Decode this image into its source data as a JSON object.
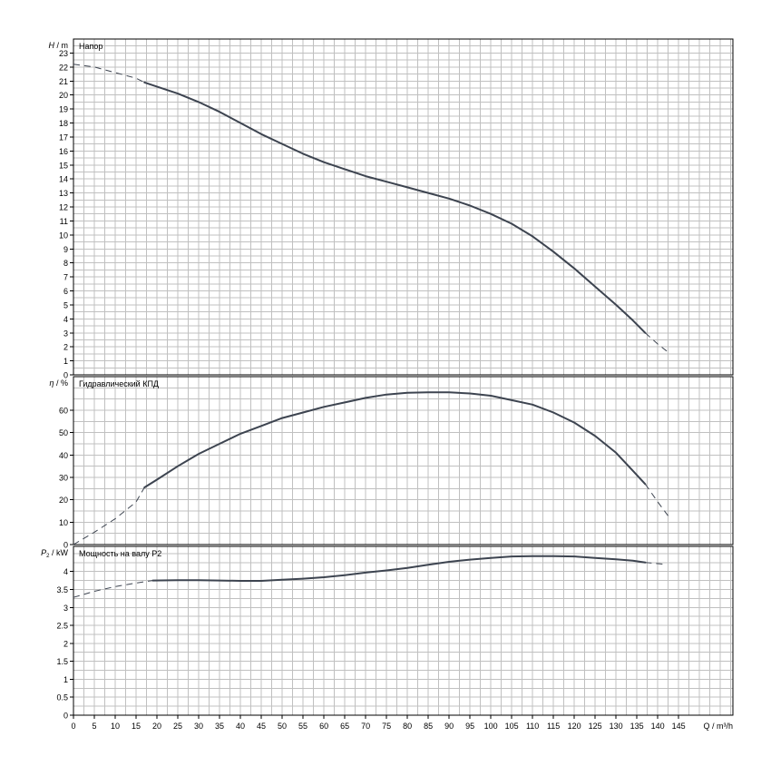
{
  "chart_data": [
    {
      "type": "line",
      "panel": "head",
      "title": "Напор",
      "ylabel_symbol": "H",
      "ylabel_unit": "m",
      "ylim": [
        0,
        24
      ],
      "ytick_step": 1,
      "yticks": [
        "0",
        "1",
        "2",
        "3",
        "4",
        "5",
        "6",
        "7",
        "8",
        "9",
        "10",
        "11",
        "12",
        "13",
        "14",
        "15",
        "16",
        "17",
        "18",
        "19",
        "20",
        "21",
        "22",
        "23"
      ],
      "series": [
        {
          "solid": [
            [
              17,
              20.9
            ],
            [
              20,
              20.6
            ],
            [
              25,
              20.1
            ],
            [
              30,
              19.5
            ],
            [
              35,
              18.8
            ],
            [
              40,
              18.0
            ],
            [
              45,
              17.2
            ],
            [
              50,
              16.5
            ],
            [
              55,
              15.8
            ],
            [
              60,
              15.2
            ],
            [
              65,
              14.7
            ],
            [
              70,
              14.2
            ],
            [
              75,
              13.8
            ],
            [
              80,
              13.4
            ],
            [
              85,
              13.0
            ],
            [
              90,
              12.6
            ],
            [
              95,
              12.1
            ],
            [
              100,
              11.5
            ],
            [
              105,
              10.8
            ],
            [
              110,
              9.9
            ],
            [
              115,
              8.8
            ],
            [
              120,
              7.6
            ],
            [
              125,
              6.3
            ],
            [
              130,
              5.0
            ],
            [
              134,
              3.9
            ],
            [
              137,
              3.0
            ]
          ],
          "dashed_start": [
            [
              0,
              22.2
            ],
            [
              5,
              22.0
            ],
            [
              10,
              21.6
            ],
            [
              15,
              21.2
            ],
            [
              17,
              20.9
            ]
          ],
          "dashed_end": [
            [
              137,
              3.0
            ],
            [
              140,
              2.2
            ],
            [
              143,
              1.5
            ]
          ]
        }
      ]
    },
    {
      "type": "line",
      "panel": "efficiency",
      "title": "Гидравлический КПД",
      "ylabel_symbol": "η",
      "ylabel_unit": "%",
      "ylim": [
        0,
        75
      ],
      "ytick_step": 10,
      "yticks": [
        "0",
        "10",
        "20",
        "30",
        "40",
        "50",
        "60"
      ],
      "series": [
        {
          "solid": [
            [
              17,
              25.5
            ],
            [
              20,
              29
            ],
            [
              25,
              35
            ],
            [
              30,
              40.5
            ],
            [
              35,
              45
            ],
            [
              40,
              49.5
            ],
            [
              45,
              53
            ],
            [
              50,
              56.5
            ],
            [
              55,
              59
            ],
            [
              60,
              61.5
            ],
            [
              65,
              63.5
            ],
            [
              70,
              65.5
            ],
            [
              75,
              67
            ],
            [
              80,
              67.8
            ],
            [
              85,
              68
            ],
            [
              90,
              68
            ],
            [
              95,
              67.5
            ],
            [
              100,
              66.5
            ],
            [
              105,
              64.5
            ],
            [
              110,
              62.5
            ],
            [
              115,
              59
            ],
            [
              120,
              54.5
            ],
            [
              125,
              48.5
            ],
            [
              130,
              41
            ],
            [
              134,
              33
            ],
            [
              137,
              27
            ]
          ],
          "dashed_start": [
            [
              0,
              0
            ],
            [
              5,
              5.5
            ],
            [
              10,
              11.5
            ],
            [
              15,
              19
            ],
            [
              17,
              25.5
            ]
          ],
          "dashed_end": [
            [
              137,
              27
            ],
            [
              140,
              19
            ],
            [
              143,
              11.5
            ]
          ]
        }
      ]
    },
    {
      "type": "line",
      "panel": "power",
      "title": "Мощность на валу P2",
      "ylabel_symbol": "P",
      "ylabel_sub": "2",
      "ylabel_unit": "kW",
      "ylim": [
        0,
        4.7
      ],
      "ytick_step": 0.5,
      "yticks": [
        "0",
        "0.5",
        "1",
        "1.5",
        "2",
        "2.5",
        "3",
        "3.5",
        "4"
      ],
      "series": [
        {
          "solid": [
            [
              19,
              3.75
            ],
            [
              25,
              3.76
            ],
            [
              30,
              3.76
            ],
            [
              35,
              3.75
            ],
            [
              40,
              3.74
            ],
            [
              45,
              3.74
            ],
            [
              50,
              3.77
            ],
            [
              55,
              3.8
            ],
            [
              60,
              3.84
            ],
            [
              65,
              3.9
            ],
            [
              70,
              3.97
            ],
            [
              75,
              4.03
            ],
            [
              80,
              4.1
            ],
            [
              85,
              4.19
            ],
            [
              90,
              4.27
            ],
            [
              95,
              4.33
            ],
            [
              100,
              4.38
            ],
            [
              105,
              4.42
            ],
            [
              110,
              4.43
            ],
            [
              115,
              4.43
            ],
            [
              120,
              4.42
            ],
            [
              125,
              4.38
            ],
            [
              130,
              4.34
            ],
            [
              134,
              4.3
            ],
            [
              137,
              4.25
            ]
          ],
          "dashed_start": [
            [
              0,
              3.28
            ],
            [
              5,
              3.45
            ],
            [
              10,
              3.58
            ],
            [
              15,
              3.68
            ],
            [
              19,
              3.75
            ]
          ],
          "dashed_end": [
            [
              137,
              4.25
            ],
            [
              140,
              4.22
            ],
            [
              142,
              4.2
            ]
          ]
        }
      ]
    }
  ],
  "x_axis": {
    "label": "Q / m³/h",
    "xlim": [
      0,
      158
    ],
    "tick_step": 5,
    "ticks": [
      "0",
      "5",
      "10",
      "15",
      "20",
      "25",
      "30",
      "35",
      "40",
      "45",
      "50",
      "55",
      "60",
      "65",
      "70",
      "75",
      "80",
      "85",
      "90",
      "95",
      "100",
      "105",
      "110",
      "115",
      "120",
      "125",
      "130",
      "135",
      "140",
      "145"
    ]
  },
  "grid": true,
  "grid_color": "#c0c0c0",
  "curve_color": "#3d4450",
  "axis_color": "#000000"
}
